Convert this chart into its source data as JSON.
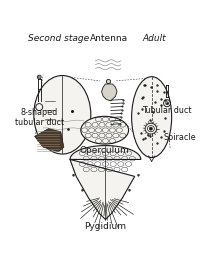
{
  "title_left": "Second stage",
  "title_right": "Adult",
  "label_antenna": "Antenna",
  "label_operculum": "Operculum",
  "label_spiracle": "Spiracle",
  "label_pygidium": "Pygidium",
  "label_tubular_duct": "Tubular duct",
  "label_8shaped": "8-shaped\ntubular duct",
  "bg_color": "#ffffff",
  "line_color": "#1a1a1a",
  "fill_light": "#f5f3ef",
  "fill_gray": "#d8d4cc",
  "fill_dark": "#4a3a2a",
  "fill_mid": "#b0a898"
}
